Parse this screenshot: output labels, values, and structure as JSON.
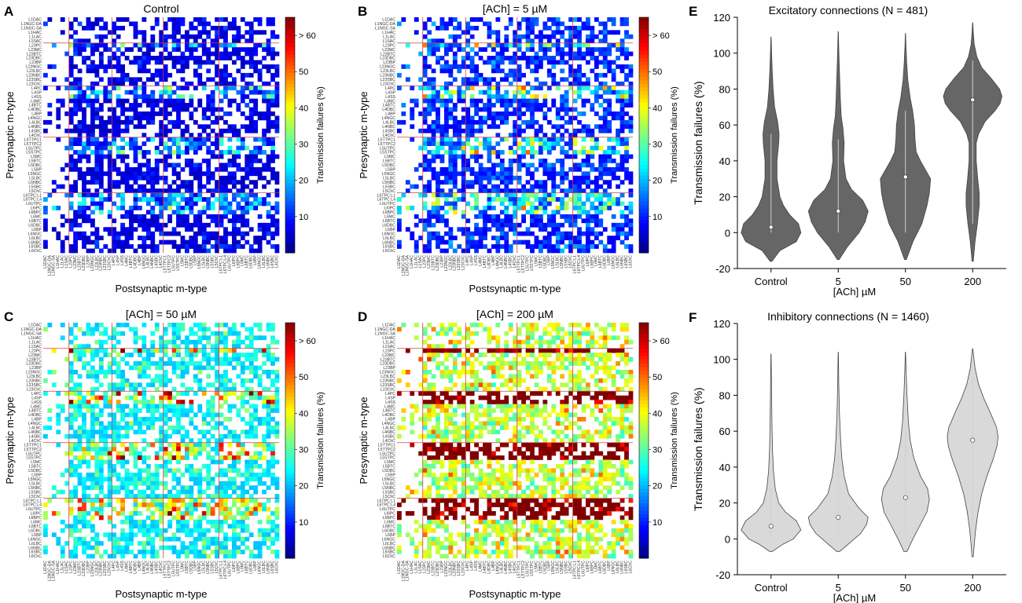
{
  "figure": {
    "panel_letters": [
      "A",
      "B",
      "C",
      "D",
      "E",
      "F"
    ],
    "heatmap_xlabel": "Postsynaptic m-type",
    "heatmap_ylabel": "Presynaptic m-type",
    "colorbar_label": "Transmission failures (%)",
    "colorbar_ticks": [
      "10",
      "20",
      "30",
      "40",
      "50",
      "> 60"
    ],
    "mtype_labels": [
      "L1DAC",
      "L1NGC-DA",
      "L1NGC-SA",
      "L1HAC",
      "L1LAC",
      "L1SAC",
      "L23PC",
      "L23MC",
      "L23BTC",
      "L23DBC",
      "L23BP",
      "L23NGC",
      "L23LBC",
      "L23NBC",
      "L23SBC",
      "L23ChC",
      "L4PC",
      "L4SP",
      "L4SS",
      "L4MC",
      "L4BTC",
      "L4DBC",
      "L4BP",
      "L4NGC",
      "L4LBC",
      "L4NBC",
      "L4SBC",
      "L4ChC",
      "L5TTPC1",
      "L5TTPC2",
      "L5UTPC",
      "L5STPC",
      "L5MC",
      "L5BTC",
      "L5DBC",
      "L5BP",
      "L5NGC",
      "L5LBC",
      "L5NBC",
      "L5SBC",
      "L5ChC",
      "L6TPC:L1",
      "L6TPC:L4",
      "L6UTPC",
      "L6IPC",
      "L6BPC",
      "L6MC",
      "L6BTC",
      "L6DBC",
      "L6BP",
      "L6NGC",
      "L6LBC",
      "L6NBC",
      "L6SBC",
      "L6ChC"
    ]
  },
  "chart_data": [
    {
      "type": "heatmap",
      "panel": "A",
      "title": "Control",
      "xlabel": "Postsynaptic m-type",
      "ylabel": "Presynaptic m-type",
      "colorbar_range": [
        0,
        65
      ],
      "colorbar_label": "Transmission failures (%)",
      "level": 0
    },
    {
      "type": "heatmap",
      "panel": "B",
      "title": "[ACh] = 5 µM",
      "xlabel": "Postsynaptic m-type",
      "ylabel": "Presynaptic m-type",
      "colorbar_range": [
        0,
        65
      ],
      "colorbar_label": "Transmission failures (%)",
      "level": 1
    },
    {
      "type": "heatmap",
      "panel": "C",
      "title": "[ACh] = 50 µM",
      "xlabel": "Postsynaptic m-type",
      "ylabel": "Presynaptic m-type",
      "colorbar_range": [
        0,
        65
      ],
      "colorbar_label": "Transmission failures (%)",
      "level": 2
    },
    {
      "type": "heatmap",
      "panel": "D",
      "title": "[ACh] = 200 µM",
      "xlabel": "Postsynaptic m-type",
      "ylabel": "Presynaptic m-type",
      "colorbar_range": [
        0,
        65
      ],
      "colorbar_label": "Transmission failures (%)",
      "level": 3
    },
    {
      "type": "violin",
      "panel": "E",
      "title": "Excitatory connections (N = 481)",
      "xlabel": "[ACh] µM",
      "ylabel": "Transmission failures (%)",
      "categories": [
        "Control",
        "5",
        "50",
        "200"
      ],
      "ylim": [
        -20,
        120
      ],
      "yticks": [
        -20,
        0,
        20,
        40,
        60,
        80,
        100,
        120
      ],
      "fill": "#666666",
      "medians": [
        3,
        12,
        31,
        74
      ],
      "ranges": [
        [
          -16,
          109
        ],
        [
          -15,
          112
        ],
        [
          -15,
          111
        ],
        [
          -16,
          117
        ]
      ],
      "whiskers": [
        [
          0,
          55
        ],
        [
          0,
          52
        ],
        [
          0,
          68
        ],
        [
          5,
          96
        ]
      ],
      "density": [
        [
          [
            -16,
            0.03
          ],
          [
            -10,
            0.3
          ],
          [
            -5,
            0.85
          ],
          [
            0,
            1.0
          ],
          [
            5,
            0.92
          ],
          [
            10,
            0.62
          ],
          [
            15,
            0.42
          ],
          [
            20,
            0.3
          ],
          [
            30,
            0.2
          ],
          [
            40,
            0.2
          ],
          [
            50,
            0.26
          ],
          [
            55,
            0.27
          ],
          [
            62,
            0.22
          ],
          [
            70,
            0.12
          ],
          [
            80,
            0.07
          ],
          [
            90,
            0.04
          ],
          [
            100,
            0.02
          ],
          [
            109,
            0.003
          ]
        ],
        [
          [
            -15,
            0.03
          ],
          [
            -8,
            0.3
          ],
          [
            0,
            0.7
          ],
          [
            6,
            0.9
          ],
          [
            12,
            1.0
          ],
          [
            18,
            0.82
          ],
          [
            24,
            0.45
          ],
          [
            30,
            0.26
          ],
          [
            40,
            0.18
          ],
          [
            50,
            0.2
          ],
          [
            58,
            0.16
          ],
          [
            65,
            0.1
          ],
          [
            75,
            0.07
          ],
          [
            85,
            0.05
          ],
          [
            95,
            0.03
          ],
          [
            105,
            0.015
          ],
          [
            112,
            0.003
          ]
        ],
        [
          [
            -15,
            0.03
          ],
          [
            -5,
            0.25
          ],
          [
            5,
            0.55
          ],
          [
            15,
            0.72
          ],
          [
            22,
            0.8
          ],
          [
            30,
            0.84
          ],
          [
            40,
            0.5
          ],
          [
            45,
            0.36
          ],
          [
            52,
            0.32
          ],
          [
            60,
            0.3
          ],
          [
            68,
            0.24
          ],
          [
            75,
            0.16
          ],
          [
            85,
            0.08
          ],
          [
            95,
            0.04
          ],
          [
            105,
            0.015
          ],
          [
            111,
            0.003
          ]
        ],
        [
          [
            -16,
            0.02
          ],
          [
            -5,
            0.08
          ],
          [
            5,
            0.16
          ],
          [
            15,
            0.22
          ],
          [
            22,
            0.22
          ],
          [
            30,
            0.17
          ],
          [
            40,
            0.12
          ],
          [
            50,
            0.12
          ],
          [
            55,
            0.2
          ],
          [
            62,
            0.42
          ],
          [
            68,
            0.75
          ],
          [
            72,
            0.92
          ],
          [
            76,
            0.98
          ],
          [
            80,
            0.9
          ],
          [
            86,
            0.62
          ],
          [
            92,
            0.3
          ],
          [
            98,
            0.14
          ],
          [
            105,
            0.05
          ],
          [
            112,
            0.02
          ],
          [
            117,
            0.003
          ]
        ]
      ]
    },
    {
      "type": "violin",
      "panel": "F",
      "title": "Inhibitory connections (N = 1460)",
      "xlabel": "[ACh] µM",
      "ylabel": "Transmission failures (%)",
      "categories": [
        "Control",
        "5",
        "50",
        "200"
      ],
      "ylim": [
        -20,
        120
      ],
      "yticks": [
        -20,
        0,
        20,
        40,
        60,
        80,
        100,
        120
      ],
      "fill": "#d9d9d9",
      "medians": [
        7,
        12,
        23,
        55
      ],
      "ranges": [
        [
          -7,
          103
        ],
        [
          -7,
          104
        ],
        [
          -7,
          104
        ],
        [
          -10,
          106
        ]
      ],
      "whiskers": [
        [
          0,
          28
        ],
        [
          0,
          46
        ],
        [
          4,
          62
        ],
        [
          1,
          90
        ]
      ],
      "density": [
        [
          [
            -7,
            0.05
          ],
          [
            -3,
            0.4
          ],
          [
            0,
            0.75
          ],
          [
            5,
            1.0
          ],
          [
            10,
            0.85
          ],
          [
            15,
            0.48
          ],
          [
            20,
            0.26
          ],
          [
            28,
            0.14
          ],
          [
            38,
            0.08
          ],
          [
            50,
            0.05
          ],
          [
            65,
            0.03
          ],
          [
            80,
            0.02
          ],
          [
            95,
            0.01
          ],
          [
            103,
            0.003
          ]
        ],
        [
          [
            -7,
            0.05
          ],
          [
            -2,
            0.4
          ],
          [
            3,
            0.75
          ],
          [
            8,
            0.95
          ],
          [
            12,
            1.0
          ],
          [
            17,
            0.7
          ],
          [
            25,
            0.35
          ],
          [
            35,
            0.2
          ],
          [
            45,
            0.12
          ],
          [
            55,
            0.08
          ],
          [
            70,
            0.04
          ],
          [
            85,
            0.02
          ],
          [
            104,
            0.003
          ]
        ],
        [
          [
            -7,
            0.05
          ],
          [
            0,
            0.25
          ],
          [
            8,
            0.5
          ],
          [
            15,
            0.72
          ],
          [
            22,
            0.8
          ],
          [
            28,
            0.74
          ],
          [
            35,
            0.5
          ],
          [
            45,
            0.28
          ],
          [
            55,
            0.16
          ],
          [
            65,
            0.1
          ],
          [
            80,
            0.05
          ],
          [
            95,
            0.02
          ],
          [
            104,
            0.003
          ]
        ],
        [
          [
            -10,
            0.02
          ],
          [
            -2,
            0.06
          ],
          [
            5,
            0.1
          ],
          [
            15,
            0.18
          ],
          [
            25,
            0.3
          ],
          [
            35,
            0.48
          ],
          [
            45,
            0.7
          ],
          [
            52,
            0.82
          ],
          [
            57,
            0.85
          ],
          [
            62,
            0.8
          ],
          [
            70,
            0.6
          ],
          [
            78,
            0.38
          ],
          [
            86,
            0.2
          ],
          [
            95,
            0.08
          ],
          [
            106,
            0.003
          ]
        ]
      ]
    }
  ]
}
